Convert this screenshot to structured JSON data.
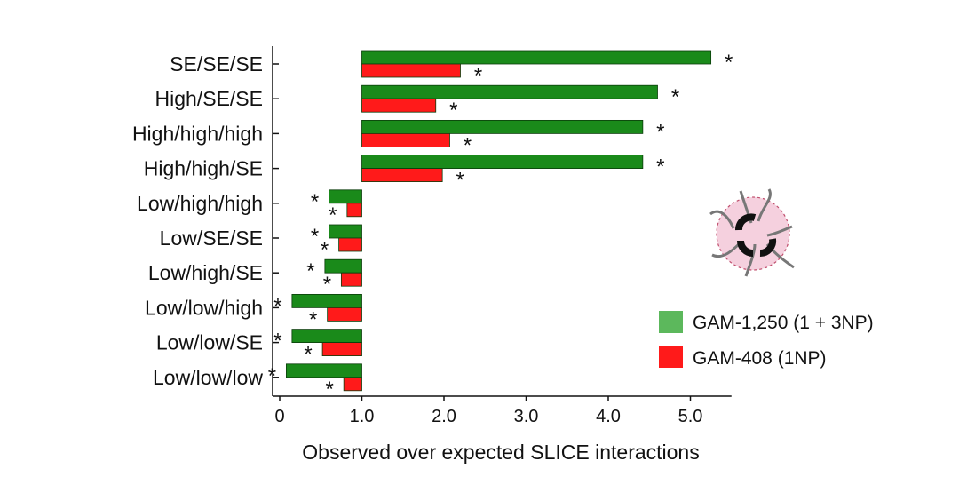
{
  "chart_data": {
    "type": "bar",
    "orientation": "horizontal",
    "baseline": 1.0,
    "title": "",
    "xlabel": "Observed over expected SLICE interactions",
    "ylabel": "",
    "xlim": [
      0,
      5.5
    ],
    "xticks": [
      {
        "value": 0,
        "label": "0"
      },
      {
        "value": 1,
        "label": "1.0"
      },
      {
        "value": 2,
        "label": "2.0"
      },
      {
        "value": 3,
        "label": "3.0"
      },
      {
        "value": 4,
        "label": "4.0"
      },
      {
        "value": 5,
        "label": "5.0"
      }
    ],
    "categories": [
      "SE/SE/SE",
      "High/SE/SE",
      "High/high/high",
      "High/high/SE",
      "Low/high/high",
      "Low/SE/SE",
      "Low/high/SE",
      "Low/low/high",
      "Low/low/SE",
      "Low/low/low"
    ],
    "series": [
      {
        "name": "GAM-1,250 (1 + 3NP)",
        "color": "#1a8a1a",
        "values": [
          5.25,
          4.6,
          4.42,
          4.42,
          0.6,
          0.6,
          0.55,
          0.15,
          0.15,
          0.08
        ]
      },
      {
        "name": "GAM-408 (1NP)",
        "color": "#ff1a1a",
        "values": [
          2.2,
          1.9,
          2.07,
          1.98,
          0.82,
          0.72,
          0.75,
          0.58,
          0.52,
          0.78
        ]
      }
    ],
    "significance_marker": "*",
    "legend_position": "bottom-right",
    "grid": false
  },
  "legend": {
    "colors": {
      "gam1250": "#5cb85c",
      "gam408": "#ff1a1a"
    }
  },
  "icon": {
    "name": "nuclear-profile-icon",
    "fill": "#f5d0de",
    "stroke": "#c0506e"
  }
}
